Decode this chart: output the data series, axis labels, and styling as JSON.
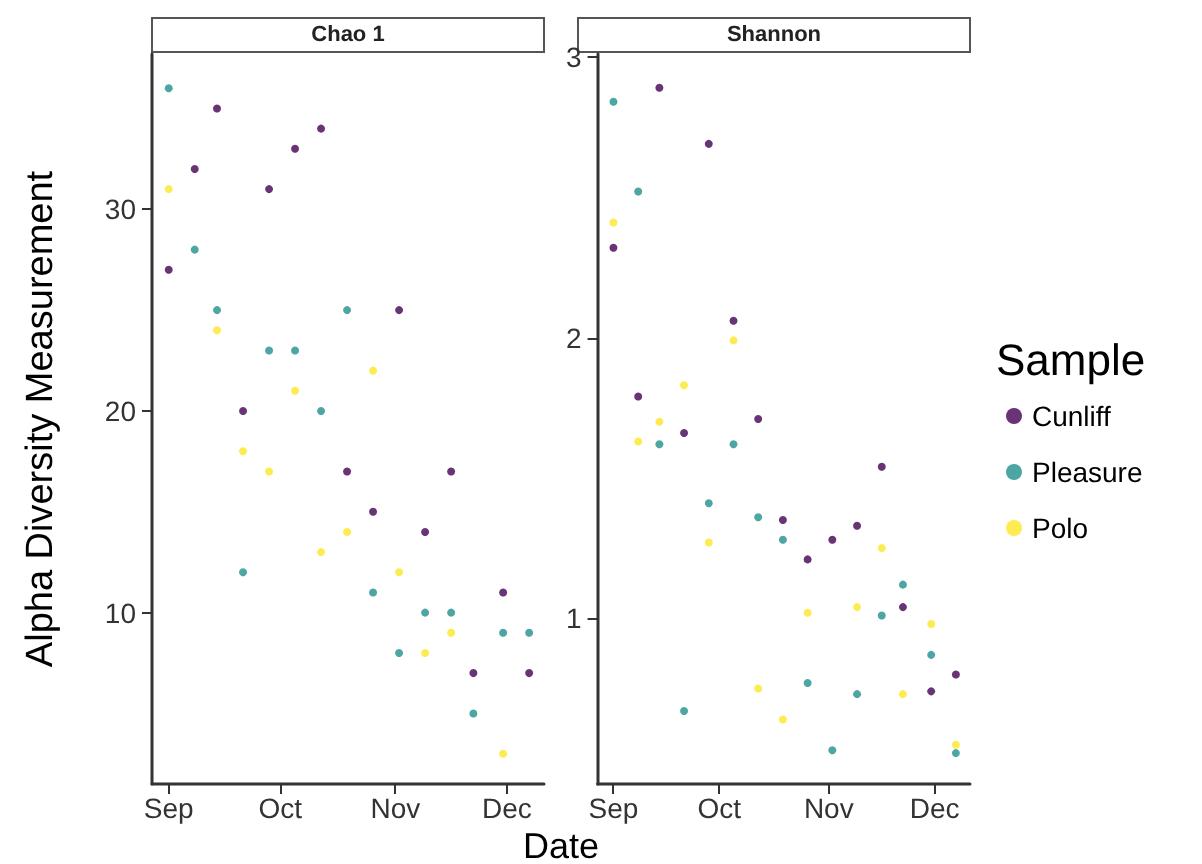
{
  "chart_data": [
    {
      "type": "scatter",
      "title": "Chao 1",
      "ylabel": "Alpha Diversity Measurement",
      "xlabel": "Date",
      "marker": "circle",
      "grid": false,
      "x": [
        "--09-01",
        "--09-08",
        "--09-14",
        "--09-21",
        "--09-28",
        "--10-05",
        "--10-12",
        "--10-19",
        "--10-26",
        "--11-02",
        "--11-09",
        "--11-16",
        "--11-22",
        "--11-30",
        "--12-07"
      ],
      "xlim": [
        "--08-27T12:00",
        "--12-11"
      ],
      "xticks": [
        {
          "value": "--09-01",
          "label": "Sep"
        },
        {
          "value": "--10-01",
          "label": "Oct"
        },
        {
          "value": "--11-01",
          "label": "Nov"
        },
        {
          "value": "--12-01",
          "label": "Dec"
        }
      ],
      "ylim": [
        1.5,
        37.7
      ],
      "yticks": [
        10,
        20,
        30
      ],
      "series": [
        {
          "color": "#440154",
          "values": [
            27,
            32,
            35,
            20,
            31,
            33,
            34,
            17,
            15,
            25,
            14,
            17,
            7,
            11,
            7
          ]
        },
        {
          "color": "#21908c",
          "values": [
            36,
            28,
            25,
            12,
            23,
            23,
            20,
            25,
            11,
            8,
            10,
            10,
            5,
            9,
            9
          ]
        },
        {
          "color": "#fde725",
          "values": [
            31,
            null,
            24,
            18,
            17,
            21,
            13,
            14,
            22,
            12,
            8,
            9,
            null,
            3,
            null
          ]
        }
      ]
    },
    {
      "type": "scatter",
      "title": "Shannon",
      "legend_title": "Sample",
      "legend": "right",
      "marker": "circle",
      "grid": false,
      "x": [
        "--09-01",
        "--09-08",
        "--09-14",
        "--09-21",
        "--09-28",
        "--10-05",
        "--10-12",
        "--10-19",
        "--10-26",
        "--11-02",
        "--11-09",
        "--11-16",
        "--11-22",
        "--11-30",
        "--12-07"
      ],
      "xlim": [
        "--08-27T12:00",
        "--12-11"
      ],
      "xticks": [
        {
          "value": "--09-01",
          "label": "Sep"
        },
        {
          "value": "--10-01",
          "label": "Oct"
        },
        {
          "value": "--11-01",
          "label": "Nov"
        },
        {
          "value": "--12-01",
          "label": "Dec"
        }
      ],
      "ylim": [
        0.41,
        3.01
      ],
      "yticks": [
        1,
        2,
        3
      ],
      "series": [
        {
          "name": "Cunliff",
          "color": "#440154",
          "values": [
            2.32,
            1.79,
            2.89,
            1.66,
            2.69,
            2.06,
            1.71,
            1.35,
            1.21,
            1.28,
            1.33,
            1.54,
            1.04,
            0.74,
            0.8
          ]
        },
        {
          "name": "Pleasure",
          "color": "#21908c",
          "values": [
            2.84,
            2.52,
            1.62,
            0.67,
            1.41,
            1.62,
            1.36,
            1.28,
            0.77,
            0.53,
            0.73,
            1.01,
            1.12,
            0.87,
            0.52
          ]
        },
        {
          "name": "Polo",
          "color": "#fde725",
          "values": [
            2.41,
            1.63,
            1.7,
            1.83,
            1.27,
            1.99,
            0.75,
            0.64,
            1.02,
            null,
            1.04,
            1.25,
            0.73,
            0.98,
            0.55
          ]
        }
      ]
    }
  ]
}
